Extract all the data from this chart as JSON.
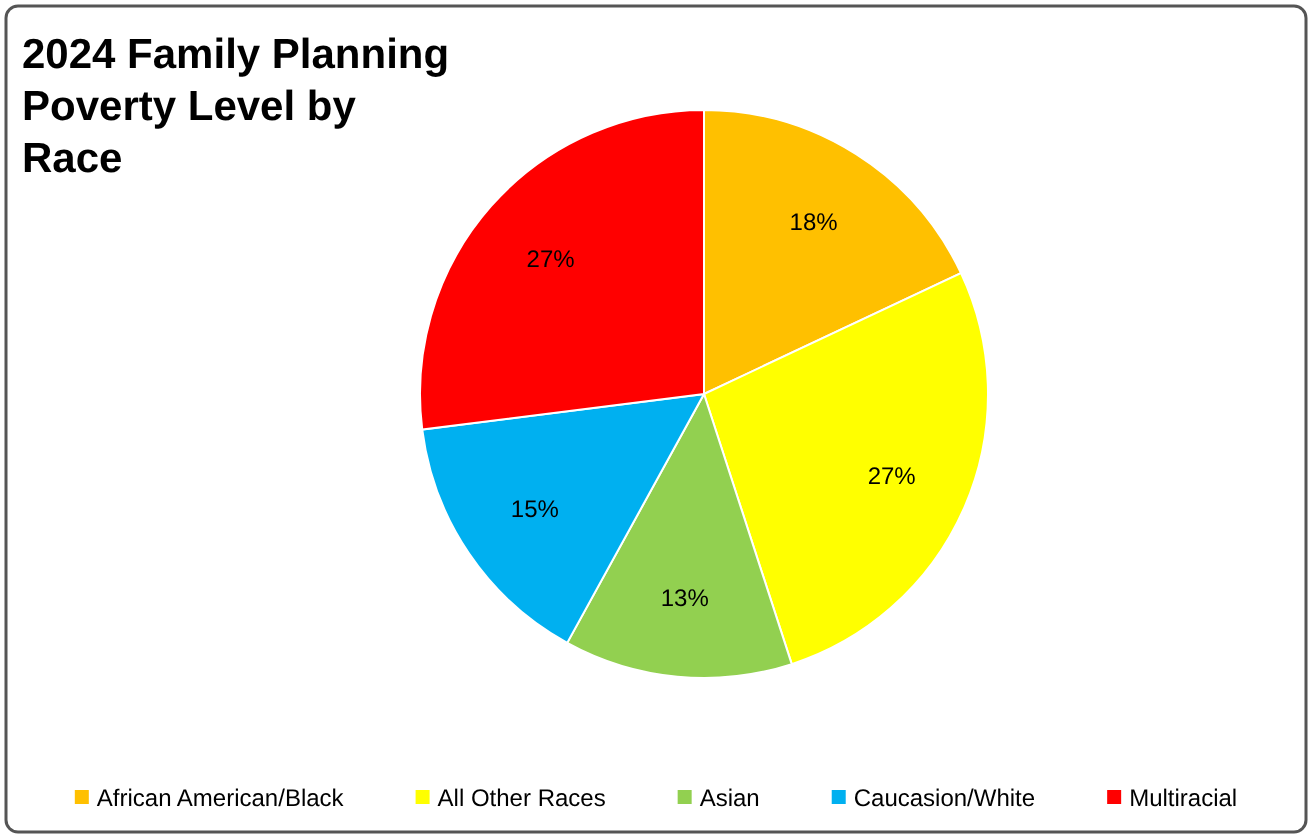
{
  "chart_data": {
    "type": "pie",
    "title": "2024 Family Planning Poverty Level by Race",
    "categories": [
      "African American/Black",
      "All Other Races",
      "Asian",
      "Caucasion/White",
      "Multiracial"
    ],
    "values": [
      18,
      27,
      13,
      15,
      27
    ],
    "colors": [
      "#ffc000",
      "#ffff00",
      "#92d050",
      "#00b0f0",
      "#ff0000"
    ],
    "value_labels": [
      "18%",
      "27%",
      "13%",
      "15%",
      "27%"
    ],
    "legend": "bottom"
  }
}
